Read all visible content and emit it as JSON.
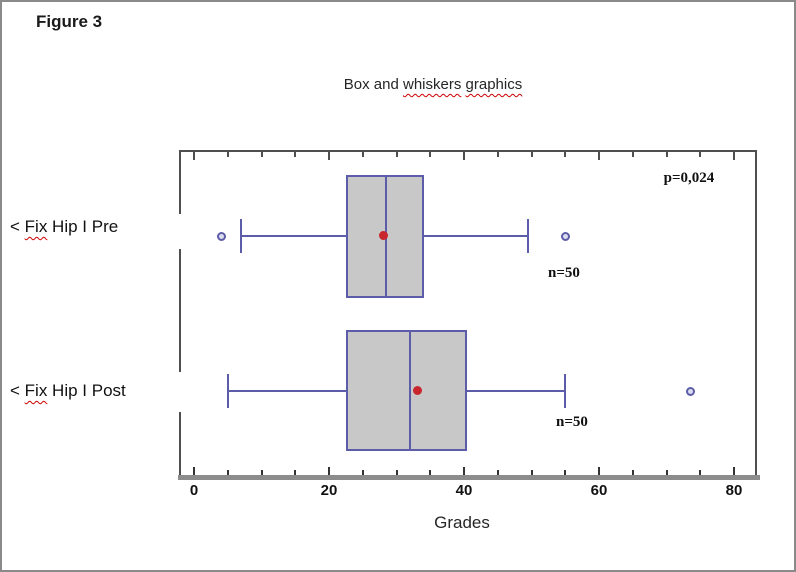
{
  "figure_label": "Figure 3",
  "chart": {
    "title": {
      "prefix": "Box and",
      "word1": "whiskers",
      "word2": "graphics"
    },
    "p_annotation": "p=0,024",
    "xlabel": "Grades"
  },
  "chart_data": {
    "type": "boxplot",
    "orientation": "horizontal",
    "title": "Box and whiskers graphics",
    "xlabel": "Grades",
    "xlim": [
      -2,
      83.5
    ],
    "x_major_ticks": [
      0,
      20,
      40,
      60,
      80
    ],
    "x_minor_tick_step": 5,
    "grid": false,
    "annotation": "p=0,024",
    "series": [
      {
        "label": "< Fix Hip I Pre",
        "label_parts": {
          "prefix": "< ",
          "misspelled_word": "Fix",
          "suffix": " Hip I Pre"
        },
        "n_label": "n=50",
        "whisker_low": 7,
        "q1": 22.5,
        "median": 28.5,
        "q3": 34,
        "whisker_high": 49.5,
        "mean": 28,
        "outliers": [
          4,
          55
        ]
      },
      {
        "label": "< Fix Hip I Post",
        "label_parts": {
          "prefix": "< ",
          "misspelled_word": "Fix",
          "suffix": " Hip I Post"
        },
        "n_label": "n=50",
        "whisker_low": 5,
        "q1": 22.5,
        "median": 32,
        "q3": 40.5,
        "whisker_high": 55,
        "mean": 33,
        "outliers": [
          73.5
        ]
      }
    ]
  },
  "colors": {
    "box_border": "#5c5ca8",
    "box_fill": "#c8c8c8",
    "mean_dot": "#c9252d",
    "outlier_fill": "#dcdcf0",
    "frame": "#4f4f4f",
    "axis_bar": "#8c8c8c",
    "text": "#1a1a1a",
    "squiggle": "#cc0000"
  }
}
